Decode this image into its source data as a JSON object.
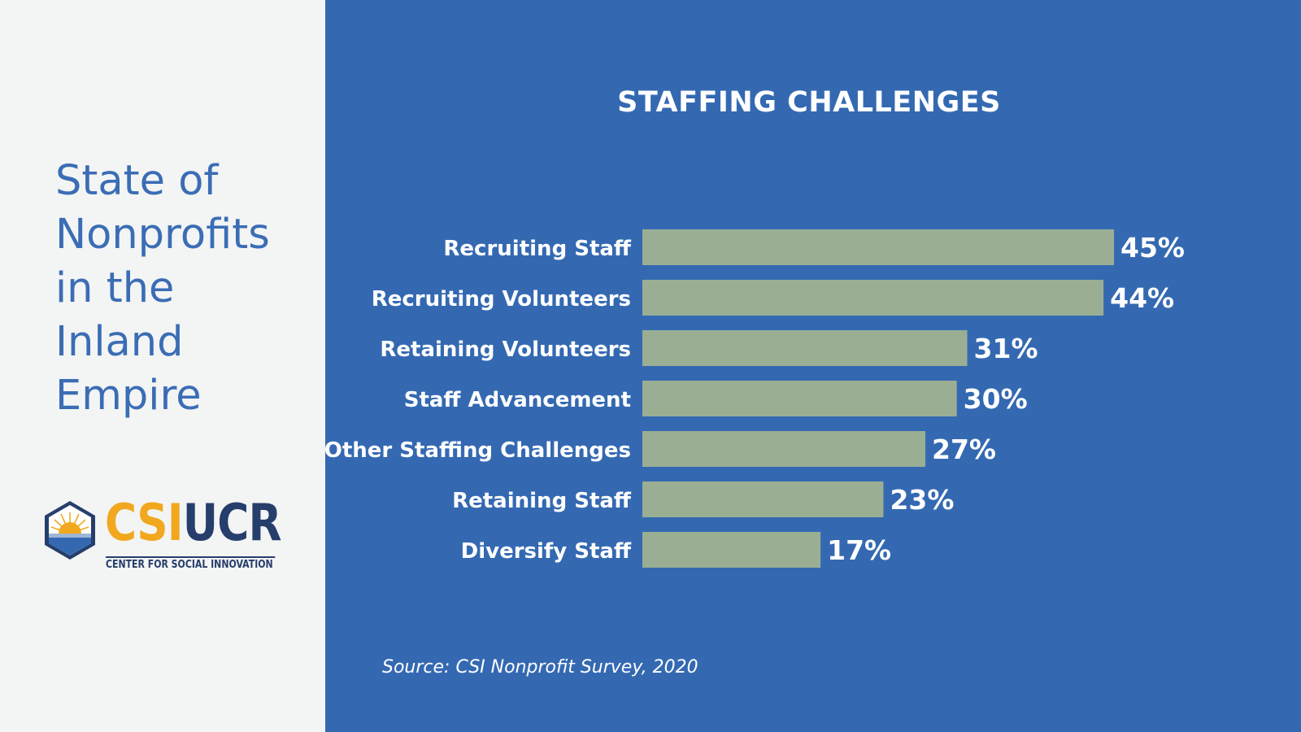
{
  "sidebar": {
    "title_lines": [
      "State of",
      "Nonprofits",
      "in the",
      "Inland",
      "Empire"
    ],
    "logo": {
      "part1": "CSI",
      "part2": "UCR",
      "subtitle": "CENTER FOR SOCIAL INNOVATION"
    }
  },
  "colors": {
    "panel_bg": "#3469b2",
    "bar": "#9aae94",
    "text": "#ffffff",
    "title_blue": "#3a6db5"
  },
  "chart_data": {
    "type": "bar",
    "orientation": "horizontal",
    "title": "STAFFING CHALLENGES",
    "categories": [
      "Recruiting Staff",
      "Recruiting Volunteers",
      "Retaining Volunteers",
      "Staff Advancement",
      "Other Staffing Challenges",
      "Retaining Staff",
      "Diversify Staff"
    ],
    "values": [
      45,
      44,
      31,
      30,
      27,
      23,
      17
    ],
    "value_labels": [
      "45%",
      "44%",
      "31%",
      "30%",
      "27%",
      "23%",
      "17%"
    ],
    "xlim": [
      0,
      45
    ],
    "xlabel": "",
    "ylabel": "",
    "grid": false,
    "legend": "none"
  },
  "source": "Source: CSI Nonprofit Survey, 2020"
}
